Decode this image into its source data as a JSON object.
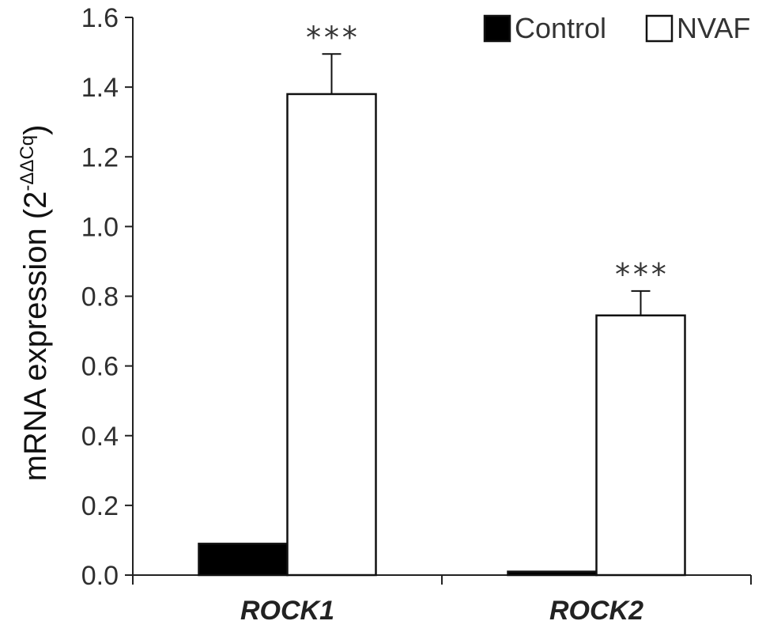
{
  "chart_data": {
    "type": "bar",
    "title": "",
    "xlabel": "",
    "ylabel": "mRNA expression (2",
    "ylabel_superscript": "-ΔΔCq",
    "ylabel_suffix": ")",
    "ylim": [
      0,
      1.6
    ],
    "yticks": [
      "0.0",
      "0.2",
      "0.4",
      "0.6",
      "0.8",
      "1.0",
      "1.2",
      "1.4",
      "1.6"
    ],
    "ytick_values": [
      0,
      0.2,
      0.4,
      0.6,
      0.8,
      1.0,
      1.2,
      1.4,
      1.6
    ],
    "categories": [
      "ROCK1",
      "ROCK2"
    ],
    "series": [
      {
        "name": "Control",
        "color": "#000000",
        "values": [
          0.09,
          0.01
        ],
        "errors": [
          null,
          null
        ]
      },
      {
        "name": "NVAF",
        "color": "#ffffff",
        "values": [
          1.38,
          0.745
        ],
        "errors": [
          0.115,
          0.07
        ]
      }
    ],
    "annotations": [
      "***",
      "***"
    ],
    "legend_position": "top-right",
    "grid": false
  },
  "colors": {
    "axis": "#222222",
    "bar_stroke": "#111111",
    "control_fill": "#000000",
    "nvaf_fill": "#ffffff"
  }
}
